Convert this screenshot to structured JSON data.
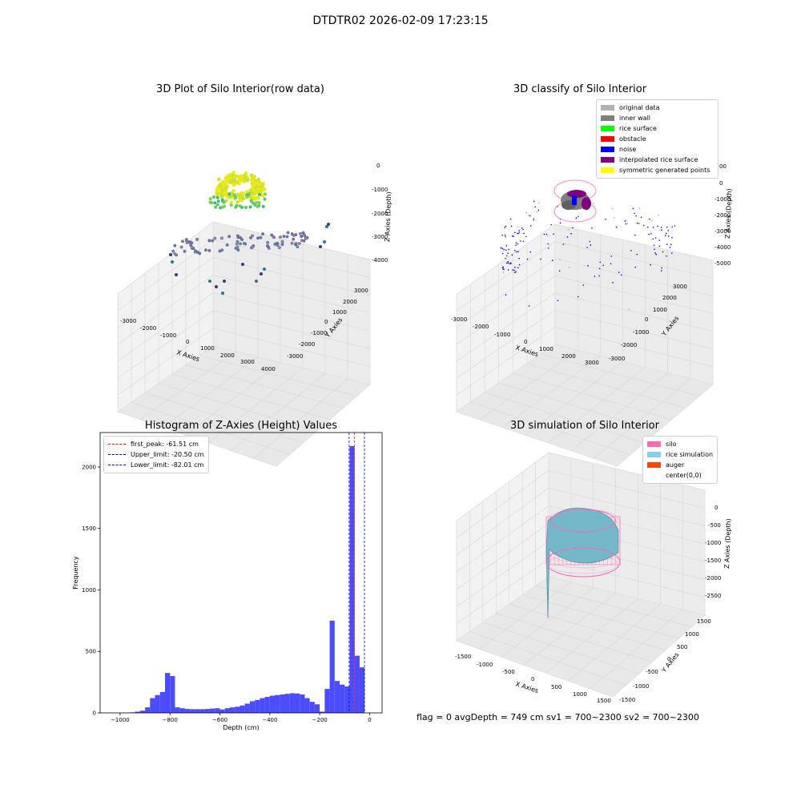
{
  "figure": {
    "title": "DTDTR02 2026-02-09 17:23:15"
  },
  "status": {
    "text": "flag = 0     avgDepth = 749 cm  sv1 = 700~2300  sv2 = 700~2300"
  },
  "chart_data": [
    {
      "type": "scatter",
      "title": "3D Plot of Silo Interior(row data)",
      "xlabel": "X Axies",
      "ylabel": "Y Axies",
      "zlabel": "Z Axies (Depth)",
      "xticks": [
        "-3000",
        "-2000",
        "-1000",
        "0",
        "1000",
        "2000",
        "3000",
        "4000"
      ],
      "yticks": [
        "3000",
        "2000",
        "1000",
        "0",
        "-1000",
        "-2000",
        "-3000"
      ],
      "zticks": [
        "0",
        "-1000",
        "-2000",
        "-3000",
        "-4000"
      ]
    },
    {
      "type": "scatter",
      "title": "3D classify of Silo Interior",
      "xlabel": "X Axies",
      "ylabel": "Y Axies",
      "zlabel": "Z Axies (Depth)",
      "xticks": [
        "-3000",
        "-2000",
        "-1000",
        "0",
        "1000",
        "2000",
        "3000"
      ],
      "yticks": [
        "3000",
        "2000",
        "1000",
        "0",
        "-1000",
        "-2000",
        "-3000"
      ],
      "zticks": [
        "0",
        "-1000",
        "-2000",
        "-3000",
        "-4000",
        "-5000"
      ],
      "ztick_partial": "00",
      "legend": [
        {
          "label": "original data",
          "color": "#b2b2b2"
        },
        {
          "label": "inner wall",
          "color": "#808080"
        },
        {
          "label": "rice surface",
          "color": "#00ff00"
        },
        {
          "label": "obstacle",
          "color": "#ff0000"
        },
        {
          "label": "noise",
          "color": "#0000ff"
        },
        {
          "label": "interpolated rice surface",
          "color": "#800080"
        },
        {
          "label": "symmetric generated points",
          "color": "#ffff00"
        }
      ]
    },
    {
      "type": "bar",
      "title": "Histogram of Z-Axies (Height) Values",
      "xlabel": "Depth (cm)",
      "ylabel": "Frequency",
      "xlim": [
        -1080,
        50
      ],
      "ylim": [
        0,
        2280
      ],
      "xticks": [
        -1000,
        -800,
        -600,
        -400,
        -200,
        0
      ],
      "yticks": [
        0,
        500,
        1000,
        1500,
        2000
      ],
      "bar_color": "#4c4cff",
      "bins": [
        {
          "x0": -1000,
          "x1": -980,
          "v": 0
        },
        {
          "x0": -980,
          "x1": -960,
          "v": 2
        },
        {
          "x0": -960,
          "x1": -940,
          "v": 4
        },
        {
          "x0": -940,
          "x1": -920,
          "v": 10
        },
        {
          "x0": -920,
          "x1": -900,
          "v": 18
        },
        {
          "x0": -900,
          "x1": -880,
          "v": 45
        },
        {
          "x0": -880,
          "x1": -860,
          "v": 120
        },
        {
          "x0": -860,
          "x1": -840,
          "v": 145
        },
        {
          "x0": -840,
          "x1": -820,
          "v": 170
        },
        {
          "x0": -820,
          "x1": -800,
          "v": 325
        },
        {
          "x0": -800,
          "x1": -780,
          "v": 300
        },
        {
          "x0": -780,
          "x1": -760,
          "v": 45
        },
        {
          "x0": -760,
          "x1": -740,
          "v": 38
        },
        {
          "x0": -740,
          "x1": -720,
          "v": 32
        },
        {
          "x0": -720,
          "x1": -700,
          "v": 30
        },
        {
          "x0": -700,
          "x1": -680,
          "v": 30
        },
        {
          "x0": -680,
          "x1": -660,
          "v": 30
        },
        {
          "x0": -660,
          "x1": -640,
          "v": 32
        },
        {
          "x0": -640,
          "x1": -620,
          "v": 35
        },
        {
          "x0": -620,
          "x1": -600,
          "v": 38
        },
        {
          "x0": -600,
          "x1": -580,
          "v": 28
        },
        {
          "x0": -580,
          "x1": -560,
          "v": 38
        },
        {
          "x0": -560,
          "x1": -540,
          "v": 45
        },
        {
          "x0": -540,
          "x1": -520,
          "v": 50
        },
        {
          "x0": -520,
          "x1": -500,
          "v": 60
        },
        {
          "x0": -500,
          "x1": -480,
          "v": 75
        },
        {
          "x0": -480,
          "x1": -460,
          "v": 95
        },
        {
          "x0": -460,
          "x1": -440,
          "v": 105
        },
        {
          "x0": -440,
          "x1": -420,
          "v": 120
        },
        {
          "x0": -420,
          "x1": -400,
          "v": 130
        },
        {
          "x0": -400,
          "x1": -380,
          "v": 140
        },
        {
          "x0": -380,
          "x1": -360,
          "v": 145
        },
        {
          "x0": -360,
          "x1": -340,
          "v": 150
        },
        {
          "x0": -340,
          "x1": -320,
          "v": 155
        },
        {
          "x0": -320,
          "x1": -300,
          "v": 160
        },
        {
          "x0": -300,
          "x1": -280,
          "v": 158
        },
        {
          "x0": -280,
          "x1": -260,
          "v": 150
        },
        {
          "x0": -260,
          "x1": -240,
          "v": 120
        },
        {
          "x0": -240,
          "x1": -220,
          "v": 90
        },
        {
          "x0": -220,
          "x1": -200,
          "v": 70
        },
        {
          "x0": -200,
          "x1": -180,
          "v": 10
        },
        {
          "x0": -180,
          "x1": -160,
          "v": 195
        },
        {
          "x0": -160,
          "x1": -140,
          "v": 750
        },
        {
          "x0": -140,
          "x1": -120,
          "v": 260
        },
        {
          "x0": -120,
          "x1": -100,
          "v": 230
        },
        {
          "x0": -100,
          "x1": -80,
          "v": 215
        },
        {
          "x0": -80,
          "x1": -60,
          "v": 2170
        },
        {
          "x0": -60,
          "x1": -40,
          "v": 465
        },
        {
          "x0": -40,
          "x1": -20,
          "v": 370
        }
      ],
      "vlines": [
        {
          "x": -61.51,
          "label": "first_peak: -61.51 cm",
          "color": "#ff0000"
        },
        {
          "x": -20.5,
          "label": "Upper_limit: -20.50 cm",
          "color": "#0000aa"
        },
        {
          "x": -82.01,
          "label": "Lower_limit: -82.01 cm",
          "color": "#0000ff"
        }
      ]
    },
    {
      "type": "surface",
      "title": "3D simulation of Silo Interior",
      "xlabel": "X Axies",
      "ylabel": "Y Axies",
      "zlabel": "Z Axies (Depth)",
      "xticks": [
        "-1500",
        "-1000",
        "-500",
        "0",
        "500",
        "1000",
        "1500"
      ],
      "yticks": [
        "1500",
        "1000",
        "500",
        "0",
        "-500",
        "-1000",
        "-1500"
      ],
      "zticks": [
        "0",
        "-500",
        "-1000",
        "-1500",
        "-2000",
        "-2500"
      ],
      "legend": [
        {
          "label": "silo",
          "color": "#ff69b4"
        },
        {
          "label": "rice simulation",
          "color": "#87ceeb"
        },
        {
          "label": "auger",
          "color": "#ff4500"
        },
        {
          "label": "center(0,0)",
          "color": "#ffffff"
        }
      ]
    }
  ]
}
